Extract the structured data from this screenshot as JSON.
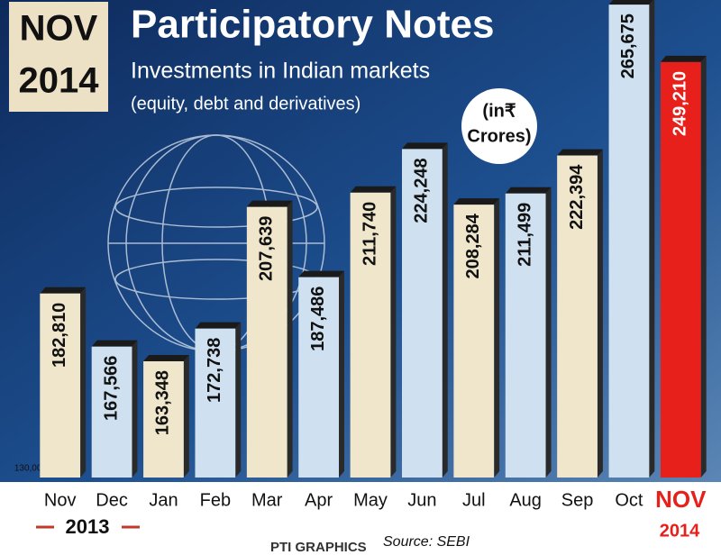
{
  "chart_data": {
    "type": "bar",
    "title": "Participatory Notes",
    "badge": [
      "NOV",
      "2014"
    ],
    "subtitle": "Investments in Indian markets",
    "note": "(equity, debt and derivatives)",
    "unit_label": [
      "(in₹",
      "Crores)"
    ],
    "categories": [
      "Nov",
      "Dec",
      "Jan",
      "Feb",
      "Mar",
      "Apr",
      "May",
      "Jun",
      "Jul",
      "Aug",
      "Sep",
      "Oct",
      "NOV"
    ],
    "values": [
      182810,
      167566,
      163348,
      172738,
      207639,
      187486,
      211740,
      224248,
      208284,
      211499,
      222394,
      265675,
      249210
    ],
    "value_labels": [
      "182,810",
      "167,566",
      "163,348",
      "172,738",
      "207,639",
      "187,486",
      "211,740",
      "224,248",
      "208,284",
      "211,499",
      "222,394",
      "265,675",
      "249,210"
    ],
    "colors": [
      "#efe6cc",
      "#cfe1f0",
      "#efe6cc",
      "#cfe1f0",
      "#efe6cc",
      "#cfe1f0",
      "#efe6cc",
      "#cfe1f0",
      "#efe6cc",
      "#cfe1f0",
      "#efe6cc",
      "#cfe1f0",
      "#e8201c"
    ],
    "ylim": [
      130000,
      267000
    ],
    "yticks": [
      {
        "value": 130000,
        "label": "130,000"
      }
    ],
    "year_labels": [
      "2013",
      "2014"
    ],
    "source": "Source:  SEBI",
    "credit": "PTI GRAPHICS"
  }
}
